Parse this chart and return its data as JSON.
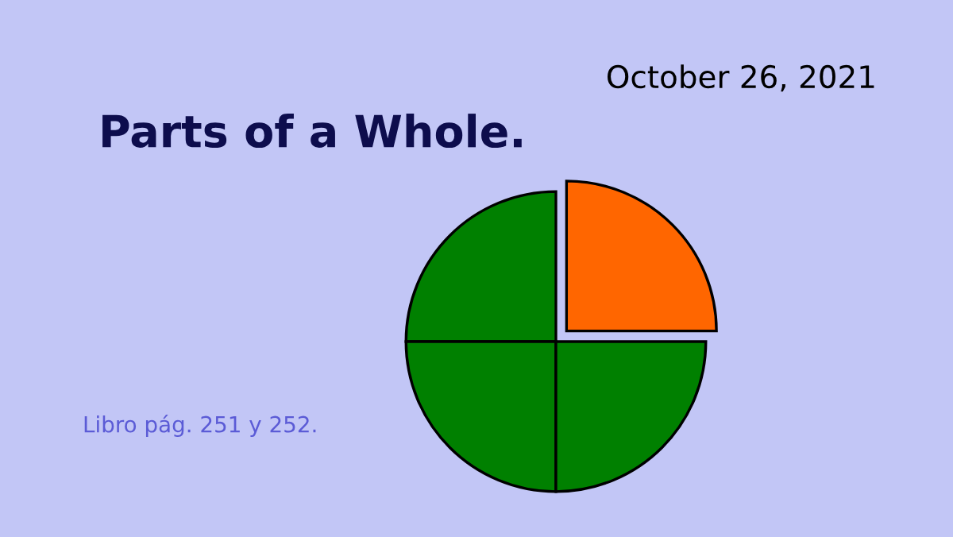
{
  "chart_data": {
    "type": "pie",
    "title": "Parts of a Whole.",
    "annotations": [
      "October 26, 2021",
      "Libro pág. 251 y 252."
    ],
    "categories": [
      null,
      null,
      null,
      null
    ],
    "values": [
      25,
      25,
      25,
      25
    ],
    "colors": [
      "#ff6600",
      "#008000",
      "#008000",
      "#008000"
    ]
  }
}
